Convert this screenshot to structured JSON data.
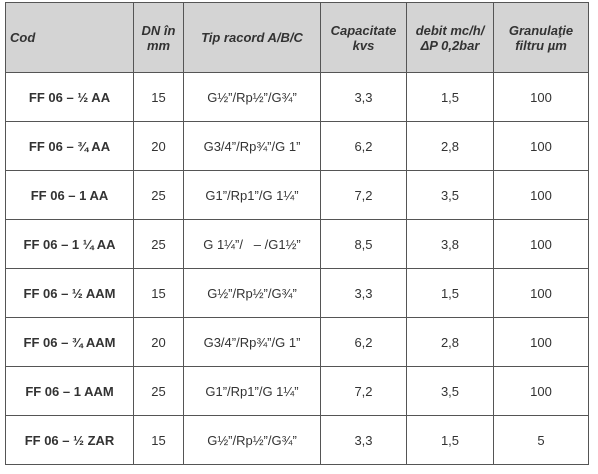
{
  "table": {
    "header": [
      [
        "Cod"
      ],
      [
        "DN în",
        "mm"
      ],
      [
        "Tip racord A/B/C"
      ],
      [
        "Capacitate",
        "kvs"
      ],
      [
        "debit mc/h/",
        "ΔP 0,2bar"
      ],
      [
        "Granulaţie",
        "filtru µm"
      ]
    ],
    "rows": [
      [
        "FF 06 – ½ AA",
        "15",
        "G½”/Rp½”/G¾”",
        "3,3",
        "1,5",
        "100"
      ],
      [
        "FF 06 – ¾ AA",
        "20",
        "G3/4”/Rp¾”/G 1”",
        "6,2",
        "2,8",
        "100"
      ],
      [
        "FF 06 – 1 AA",
        "25",
        "G1”/Rp1”/G 1¼”",
        "7,2",
        "3,5",
        "100"
      ],
      [
        "FF 06 – 1 ¼ AA",
        "25",
        "G 1¼”/   – /G1½”",
        "8,5",
        "3,8",
        "100"
      ],
      [
        "FF 06 – ½ AAM",
        "15",
        "G½”/Rp½”/G¾”",
        "3,3",
        "1,5",
        "100"
      ],
      [
        "FF 06 – ¾ AAM",
        "20",
        "G3/4”/Rp¾”/G 1”",
        "6,2",
        "2,8",
        "100"
      ],
      [
        "FF 06 – 1 AAM",
        "25",
        "G1”/Rp1”/G 1¼”",
        "7,2",
        "3,5",
        "100"
      ],
      [
        "FF 06 – ½ ZAR",
        "15",
        "G½”/Rp½”/G¾”",
        "3,3",
        "1,5",
        "5"
      ]
    ]
  }
}
